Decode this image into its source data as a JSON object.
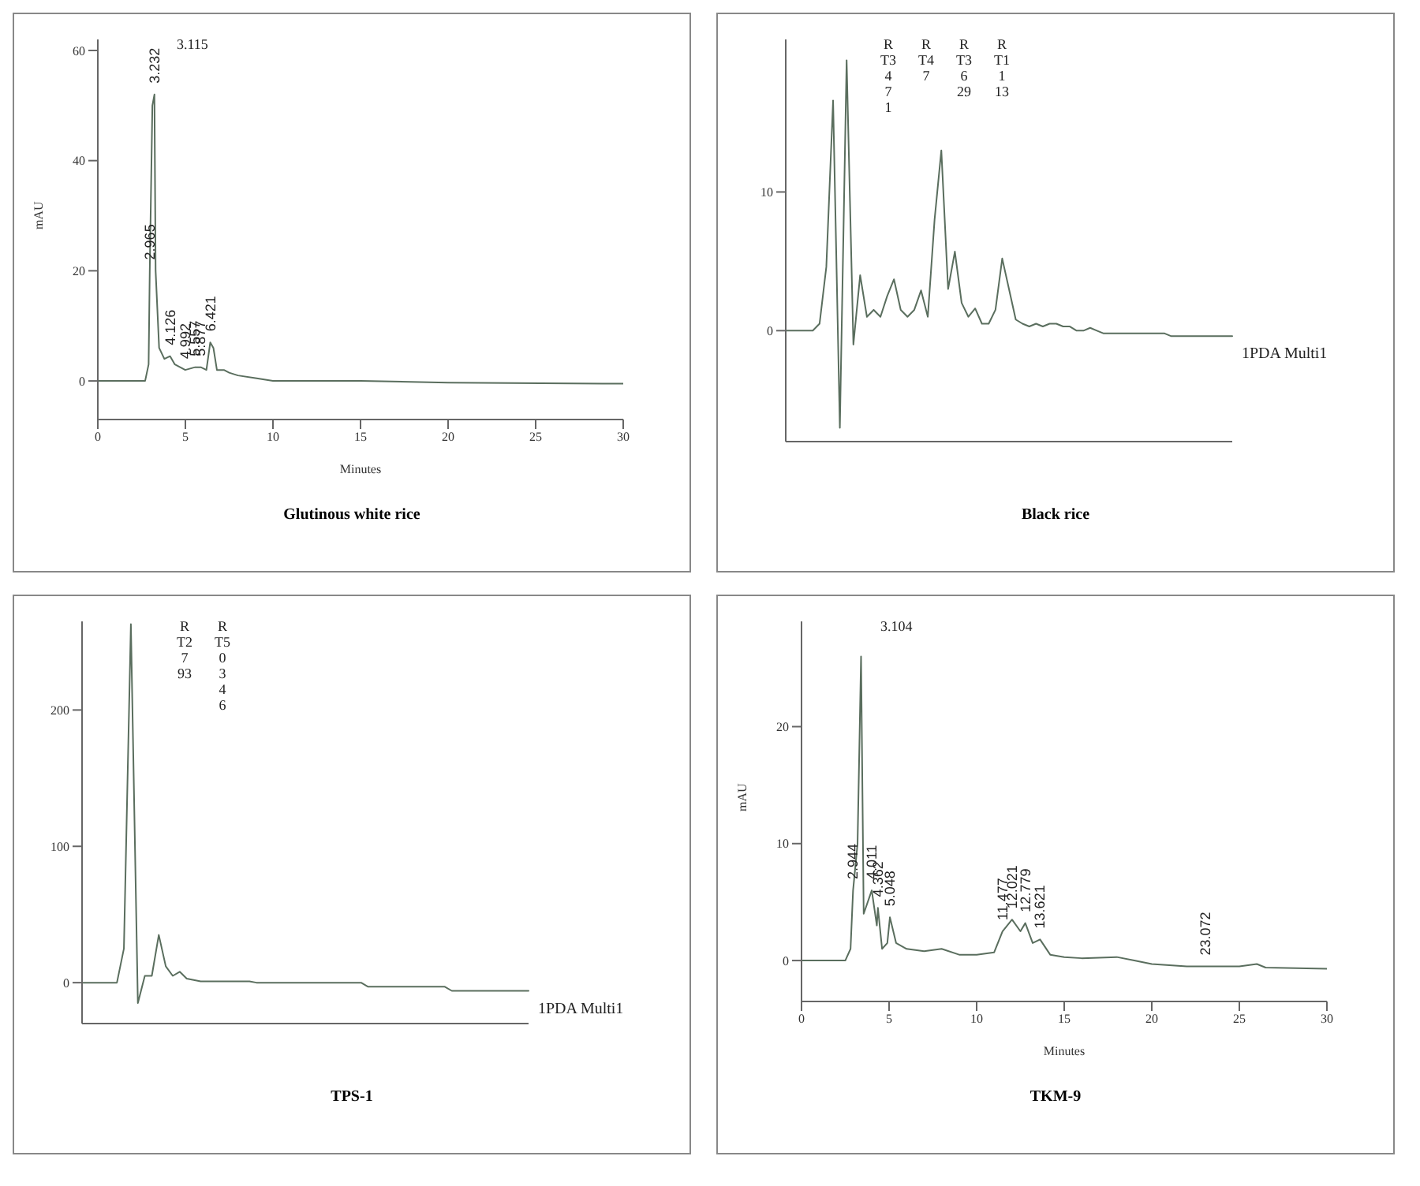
{
  "chart_data": [
    {
      "type": "line",
      "title": "Glutinous white rice",
      "xlabel": "Minutes",
      "ylabel": "mAU",
      "xlim": [
        0,
        30
      ],
      "xticks": [
        0,
        5,
        10,
        15,
        20,
        25,
        30
      ],
      "ylim": [
        -7,
        62
      ],
      "yticks": [
        0,
        20,
        40,
        60
      ],
      "x": [
        0,
        2.7,
        2.9,
        2.965,
        3.115,
        3.232,
        3.3,
        3.5,
        3.8,
        4.126,
        4.4,
        4.992,
        5.557,
        5.877,
        6.2,
        6.421,
        6.6,
        6.8,
        7.2,
        7.5,
        8,
        9,
        10,
        15,
        20,
        30
      ],
      "series": [
        {
          "color": "#5a6e5e",
          "values": [
            0,
            0,
            3,
            20,
            50,
            52,
            20,
            6,
            4,
            4.5,
            3,
            2,
            2.5,
            2.5,
            2,
            7,
            6,
            2,
            2,
            1.5,
            1,
            0.5,
            0,
            0,
            -0.3,
            -0.5
          ]
        }
      ],
      "annotations": [
        {
          "text": "2.965",
          "x": 2.965,
          "y": 20
        },
        {
          "text": "3.232",
          "x": 3.232,
          "y": 52
        },
        "3.115",
        {
          "text": "4.126",
          "x": 4.126,
          "y": 4.5
        },
        {
          "text": "4.992",
          "x": 4.992,
          "y": 2
        },
        {
          "text": "5.557",
          "x": 5.557,
          "y": 2.5
        },
        {
          "text": "5.877",
          "x": 5.877,
          "y": 2.5
        },
        {
          "text": "6.421",
          "x": 6.421,
          "y": 7
        }
      ]
    },
    {
      "type": "line",
      "title": "Black rice",
      "ylim": [
        -8,
        21
      ],
      "yticks": [
        0,
        10
      ],
      "tick_labels": "y",
      "categories": [
        null,
        null,
        null,
        null,
        null,
        null,
        null,
        null,
        null,
        null,
        null,
        null,
        null,
        null,
        null,
        null,
        null,
        null,
        null,
        null,
        null,
        null,
        null,
        null,
        null,
        null,
        null,
        null,
        null,
        null,
        null,
        null,
        null,
        null,
        null,
        null,
        null,
        null,
        null,
        null,
        null,
        null,
        null,
        null,
        null,
        null,
        null,
        null,
        null,
        null,
        null,
        null,
        null,
        null,
        null,
        null,
        null,
        null,
        null,
        null,
        null,
        null,
        null,
        null,
        null,
        null,
        null
      ],
      "series": [
        {
          "name": "1PDA Multi1",
          "color": "#5a6e5e",
          "values": [
            0,
            0,
            0,
            0,
            0,
            0.5,
            4.6,
            16.6,
            -7,
            19.5,
            -1,
            4,
            1,
            1.5,
            1,
            2.5,
            3.7,
            1.5,
            1,
            1.5,
            2.9,
            1,
            8,
            13,
            3,
            5.7,
            2,
            1,
            1.6,
            0.5,
            0.5,
            1.5,
            5.2,
            3,
            0.8,
            0.5,
            0.3,
            0.5,
            0.3,
            0.5,
            0.5,
            0.3,
            0.3,
            0,
            0,
            0.2,
            0,
            -0.2,
            -0.2,
            -0.2,
            -0.2,
            -0.2,
            -0.2,
            -0.2,
            -0.2,
            -0.2,
            -0.2,
            -0.4,
            -0.4,
            -0.4,
            -0.4,
            -0.4,
            -0.4,
            -0.4,
            -0.4,
            -0.4,
            -0.4
          ]
        }
      ],
      "annotations": [
        "R T3 4 7 1",
        "R T4 7",
        "R T3 6 29",
        "R T1 1 13"
      ]
    },
    {
      "type": "line",
      "title": "TPS-1",
      "ylim": [
        -30,
        265
      ],
      "yticks": [
        0,
        100,
        200
      ],
      "tick_labels": "y",
      "categories": [
        null,
        null,
        null,
        null,
        null,
        null,
        null,
        null,
        null,
        null,
        null,
        null,
        null,
        null,
        null,
        null,
        null,
        null,
        null,
        null,
        null,
        null,
        null,
        null,
        null,
        null,
        null,
        null,
        null,
        null,
        null,
        null,
        null,
        null,
        null,
        null,
        null,
        null,
        null,
        null,
        null,
        null,
        null,
        null,
        null,
        null,
        null,
        null,
        null,
        null,
        null,
        null,
        null,
        null,
        null,
        null,
        null,
        null,
        null,
        null,
        null,
        null,
        null,
        null,
        null
      ],
      "series": [
        {
          "name": "1PDA Multi1",
          "color": "#5a6e5e",
          "values": [
            0,
            0,
            0,
            0,
            0,
            0,
            25,
            263,
            -15,
            5,
            5,
            35,
            12,
            5,
            8,
            3,
            2,
            1,
            1,
            1,
            1,
            1,
            1,
            1,
            1,
            0,
            0,
            0,
            0,
            0,
            0,
            0,
            0,
            0,
            0,
            0,
            0,
            0,
            0,
            0,
            0,
            -3,
            -3,
            -3,
            -3,
            -3,
            -3,
            -3,
            -3,
            -3,
            -3,
            -3,
            -3,
            -6,
            -6,
            -6,
            -6,
            -6,
            -6,
            -6,
            -6,
            -6,
            -6,
            -6,
            -6
          ]
        }
      ],
      "annotations": [
        "R T2 7 93",
        "R T5 0 3 4 6"
      ]
    },
    {
      "type": "line",
      "title": "TKM-9",
      "xlabel": "Minutes",
      "ylabel": "mAU",
      "xlim": [
        0,
        30
      ],
      "xticks": [
        0,
        5,
        10,
        15,
        20,
        25,
        30
      ],
      "ylim": [
        -3.5,
        29
      ],
      "yticks": [
        0,
        10,
        20
      ],
      "x": [
        0,
        2.5,
        2.8,
        2.944,
        3.2,
        3.4,
        3.55,
        4.011,
        4.3,
        4.362,
        4.6,
        4.9,
        5.048,
        5.4,
        6,
        7,
        8,
        9,
        10,
        11,
        11.477,
        12.021,
        12.5,
        12.779,
        13.2,
        13.621,
        14.2,
        15,
        16,
        18,
        19,
        20,
        22,
        23.072,
        25,
        26,
        26.5,
        30
      ],
      "series": [
        {
          "color": "#5a6e5e",
          "values": [
            0,
            0,
            1,
            6,
            10,
            26,
            4,
            6,
            3,
            4.5,
            1,
            1.5,
            3.7,
            1.5,
            1,
            0.8,
            1,
            0.5,
            0.5,
            0.7,
            2.5,
            3.5,
            2.5,
            3.2,
            1.5,
            1.8,
            0.5,
            0.3,
            0.2,
            0.3,
            0,
            -0.3,
            -0.5,
            -0.5,
            -0.5,
            -0.3,
            -0.6,
            -0.7
          ]
        }
      ],
      "annotations": [
        {
          "text": "2.944",
          "x": 2.944,
          "y": 6
        },
        "3.104",
        {
          "text": "4.011",
          "x": 4.011,
          "y": 6
        },
        {
          "text": "4.362",
          "x": 4.362,
          "y": 4.5
        },
        {
          "text": "5.048",
          "x": 5.048,
          "y": 3.7
        },
        {
          "text": "11.477",
          "x": 11.477,
          "y": 2.5
        },
        {
          "text": "12.021",
          "x": 12.021,
          "y": 3.5
        },
        {
          "text": "12.779",
          "x": 12.779,
          "y": 3.2
        },
        {
          "text": "13.621",
          "x": 13.621,
          "y": 1.8
        },
        {
          "text": "23.072",
          "x": 23.072,
          "y": -0.5
        }
      ]
    }
  ]
}
